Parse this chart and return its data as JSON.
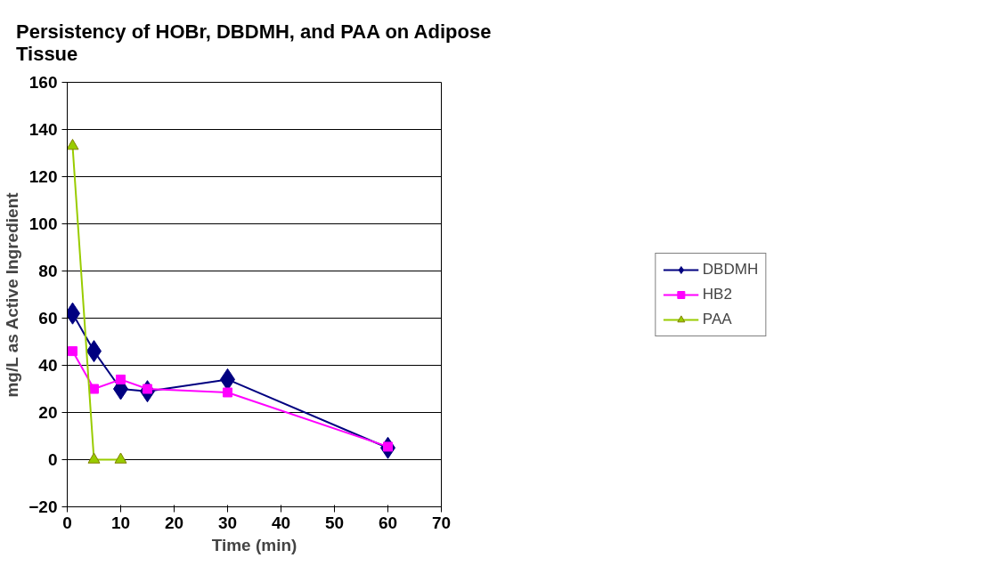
{
  "chart_data": {
    "type": "line",
    "title": "Persistency of HOBr, DBDMH, and PAA on Adipose\nTissue",
    "xlabel": "Time (min)",
    "ylabel": "mg/L as Active Ingredient",
    "xlim": [
      0,
      70
    ],
    "xticks": [
      0,
      10,
      20,
      30,
      40,
      50,
      60,
      70
    ],
    "ylim": [
      -20,
      160
    ],
    "yticks": [
      -20,
      0,
      20,
      40,
      60,
      80,
      100,
      120,
      140,
      160
    ],
    "grid": "y",
    "legend": "right",
    "series": [
      {
        "name": "DBDMH",
        "color": "#000080",
        "marker": "diamond",
        "x": [
          1,
          5,
          10,
          15,
          30,
          60
        ],
        "values": [
          62,
          46,
          30,
          29,
          34,
          5
        ]
      },
      {
        "name": "HB2",
        "color": "#ff00ff",
        "marker": "square",
        "x": [
          1,
          5,
          10,
          15,
          30,
          60
        ],
        "values": [
          46,
          30,
          34,
          30,
          28.5,
          5.5
        ]
      },
      {
        "name": "PAA",
        "color": "#99cc00",
        "marker": "triangle",
        "x": [
          1,
          5,
          10
        ],
        "values": [
          133,
          0,
          0
        ]
      }
    ]
  }
}
